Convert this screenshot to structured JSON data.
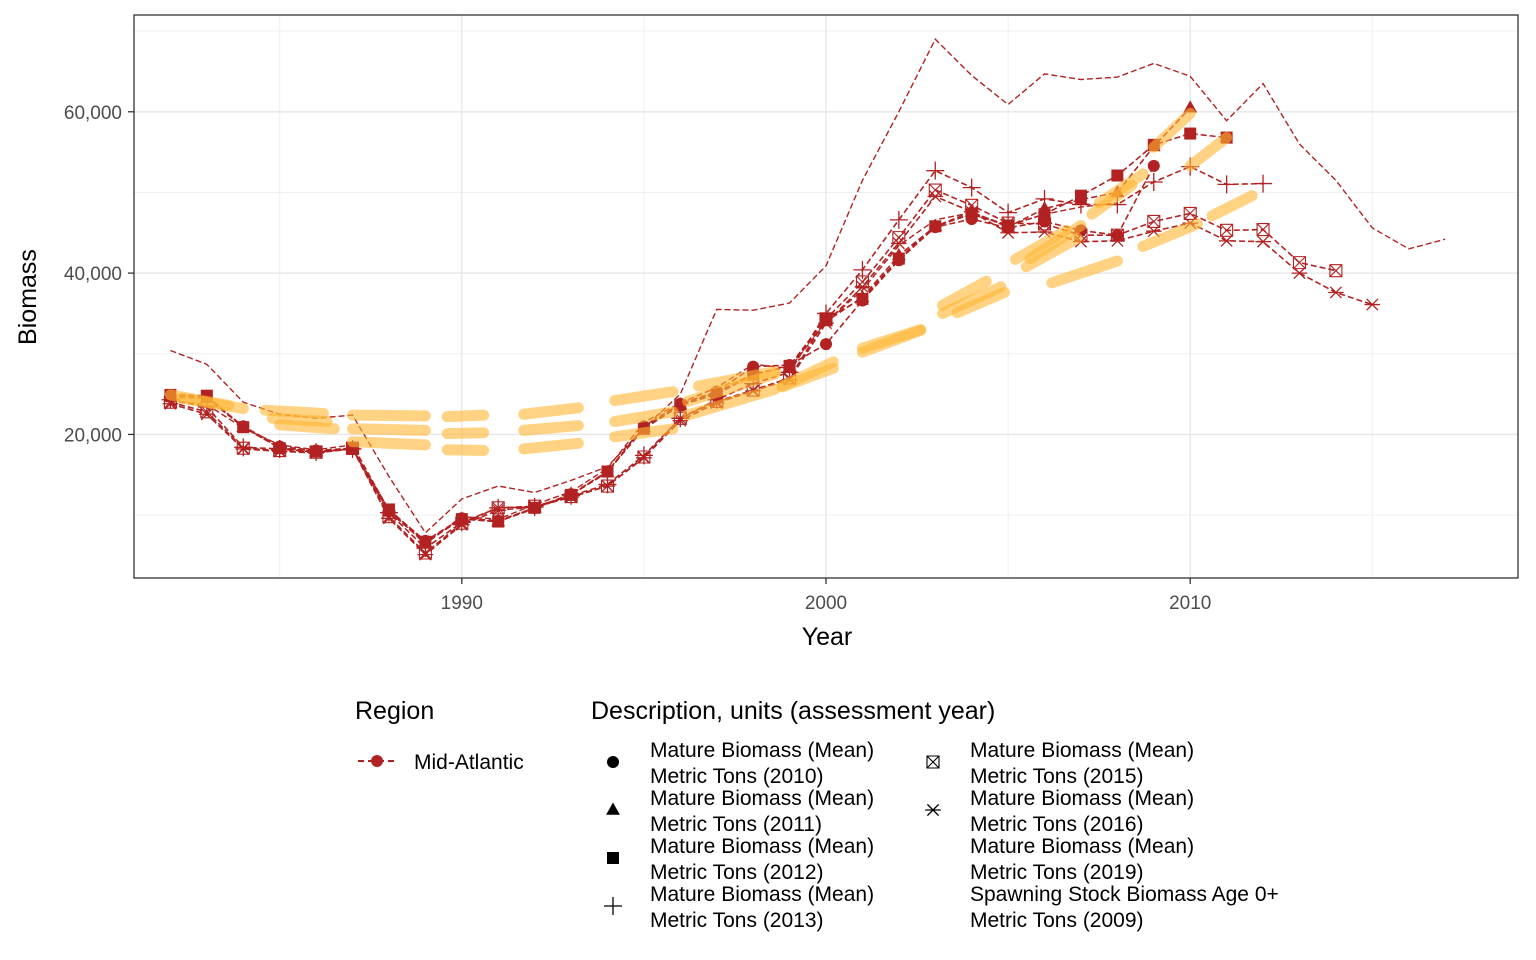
{
  "chart_data": {
    "type": "line",
    "xlabel": "Year",
    "ylabel": "Biomass",
    "xlim": [
      1981,
      2019
    ],
    "ylim": [
      2200,
      72000
    ],
    "x_ticks": [
      1990,
      2000,
      2010
    ],
    "x_tick_labels": [
      "1990",
      "2000",
      "2010"
    ],
    "y_ticks": [
      20000,
      40000,
      60000
    ],
    "y_tick_labels": [
      "20,000",
      "40,000",
      "60,000"
    ],
    "grid": true,
    "legend_position": "bottom",
    "line_color": "#B22222",
    "trend_color": "#FFB732",
    "region_legend": {
      "title": "Region",
      "entries": [
        {
          "label": "Mid-Atlantic",
          "color": "#B22222"
        }
      ]
    },
    "description_legend": {
      "title": "Description, units (assessment year)",
      "entries": [
        {
          "line1": "Mature Biomass (Mean)",
          "line2": "Metric Tons (2010)",
          "shape": "circle"
        },
        {
          "line1": "Mature Biomass (Mean)",
          "line2": "Metric Tons (2011)",
          "shape": "triangle"
        },
        {
          "line1": "Mature Biomass (Mean)",
          "line2": "Metric Tons (2012)",
          "shape": "square"
        },
        {
          "line1": "Mature Biomass (Mean)",
          "line2": "Metric Tons (2013)",
          "shape": "plus"
        },
        {
          "line1": "Mature Biomass (Mean)",
          "line2": "Metric Tons (2015)",
          "shape": "boxtimes"
        },
        {
          "line1": "Mature Biomass (Mean)",
          "line2": "Metric Tons (2016)",
          "shape": "asterisk"
        },
        {
          "line1": "Mature Biomass (Mean)",
          "line2": "Metric Tons (2019)",
          "shape": "none"
        },
        {
          "line1": "Spawning Stock Biomass Age 0+",
          "line2": "Metric Tons (2009)",
          "shape": "none"
        }
      ]
    },
    "series": [
      {
        "name": "Mature Biomass (Mean) Metric Tons (2010)",
        "shape": "circle",
        "x": [
          1982,
          1983,
          1984,
          1985,
          1986,
          1987,
          1988,
          1989,
          1990,
          1991,
          1992,
          1993,
          1994,
          1995,
          1996,
          1997,
          1998,
          1999,
          2000,
          2001,
          2002,
          2003,
          2004,
          2005,
          2006,
          2007,
          2008,
          2009
        ],
        "y": [
          24800,
          24600,
          21000,
          18500,
          18000,
          18300,
          10600,
          6800,
          9600,
          9300,
          10900,
          12600,
          15400,
          21000,
          23800,
          25300,
          28400,
          28600,
          31200,
          36600,
          41600,
          45700,
          46700,
          45600,
          46400,
          45300,
          44700,
          53300
        ]
      },
      {
        "name": "Mature Biomass (Mean) Metric Tons (2011)",
        "shape": "triangle",
        "x": [
          1982,
          1983,
          1984,
          1985,
          1986,
          1987,
          1988,
          1989,
          1990,
          1991,
          1992,
          1993,
          1994,
          1995,
          1996,
          1997,
          1998,
          1999,
          2000,
          2001,
          2002,
          2003,
          2004,
          2005,
          2006,
          2007,
          2008,
          2009,
          2010
        ],
        "y": [
          24600,
          24500,
          20900,
          18400,
          17900,
          18200,
          10400,
          6600,
          9500,
          9200,
          10800,
          12500,
          15300,
          20900,
          23700,
          25200,
          27500,
          28400,
          34000,
          37000,
          42200,
          45800,
          47600,
          45700,
          48000,
          49100,
          50000,
          55700,
          60500
        ]
      },
      {
        "name": "Mature Biomass (Mean) Metric Tons (2012)",
        "shape": "square",
        "x": [
          1982,
          1983,
          1984,
          1985,
          1986,
          1987,
          1988,
          1989,
          1990,
          1991,
          1992,
          1993,
          1994,
          1995,
          1996,
          1997,
          1998,
          1999,
          2000,
          2001,
          2002,
          2003,
          2004,
          2005,
          2006,
          2007,
          2008,
          2009,
          2010,
          2011
        ],
        "y": [
          24900,
          24800,
          20900,
          18300,
          17900,
          18200,
          10700,
          6700,
          9500,
          9200,
          10900,
          12500,
          15400,
          20700,
          23600,
          25000,
          27400,
          28500,
          34400,
          36800,
          41800,
          45800,
          47300,
          45900,
          47300,
          49600,
          52100,
          55900,
          57300,
          56800
        ]
      },
      {
        "name": "Mature Biomass (Mean) Metric Tons (2013)",
        "shape": "plus",
        "x": [
          1982,
          1983,
          1984,
          1985,
          1986,
          1987,
          1988,
          1989,
          1990,
          1991,
          1992,
          1993,
          1994,
          1995,
          1996,
          1997,
          1998,
          1999,
          2000,
          2001,
          2002,
          2003,
          2004,
          2005,
          2006,
          2007,
          2008,
          2009,
          2010,
          2011,
          2012
        ],
        "y": [
          24300,
          23400,
          18400,
          18200,
          17800,
          18200,
          10300,
          5900,
          9100,
          10900,
          11000,
          12400,
          13800,
          17400,
          22000,
          24300,
          26300,
          27700,
          35000,
          40400,
          46600,
          52700,
          50600,
          47500,
          49200,
          48500,
          48500,
          51300,
          53200,
          51000,
          51100
        ]
      },
      {
        "name": "Mature Biomass (Mean) Metric Tons (2015)",
        "shape": "boxtimes",
        "x": [
          1982,
          1983,
          1984,
          1985,
          1986,
          1987,
          1988,
          1989,
          1990,
          1991,
          1992,
          1993,
          1994,
          1995,
          1996,
          1997,
          1998,
          1999,
          2000,
          2001,
          2002,
          2003,
          2004,
          2005,
          2006,
          2007,
          2008,
          2009,
          2010,
          2011,
          2012,
          2013,
          2014
        ],
        "y": [
          24000,
          22800,
          18300,
          18000,
          17800,
          18300,
          9800,
          5300,
          9000,
          10900,
          11100,
          12300,
          13600,
          17200,
          22000,
          24100,
          25500,
          27000,
          34300,
          38900,
          44400,
          50300,
          48400,
          46200,
          46100,
          44700,
          44700,
          46400,
          47400,
          45300,
          45400,
          41300,
          40300
        ]
      },
      {
        "name": "Mature Biomass (Mean) Metric Tons (2016)",
        "shape": "asterisk",
        "x": [
          1982,
          1983,
          1984,
          1985,
          1986,
          1987,
          1988,
          1989,
          1990,
          1991,
          1992,
          1993,
          1994,
          1995,
          1996,
          1997,
          1998,
          1999,
          2000,
          2001,
          2002,
          2003,
          2004,
          2005,
          2006,
          2007,
          2008,
          2009,
          2010,
          2011,
          2012,
          2013,
          2014,
          2015
        ],
        "y": [
          23800,
          22500,
          18200,
          17900,
          17700,
          18200,
          9600,
          5100,
          8800,
          10600,
          11000,
          12200,
          13600,
          17100,
          21700,
          23900,
          25400,
          26800,
          33800,
          38300,
          43700,
          49500,
          47600,
          45000,
          45100,
          43900,
          44000,
          45200,
          46200,
          44000,
          43900,
          40000,
          37600,
          36100
        ]
      },
      {
        "name": "Mature Biomass (Mean) Metric Tons (2019)",
        "shape": "none",
        "x": [
          1982,
          1983,
          1984,
          1985,
          1986,
          1987,
          1988,
          1989,
          1990,
          1991,
          1992,
          1993,
          1994,
          1995,
          1996,
          1997,
          1998,
          1999,
          2000,
          2001,
          2002,
          2003,
          2004,
          2005,
          2006,
          2007,
          2008,
          2009,
          2010,
          2011,
          2012,
          2013,
          2014,
          2015,
          2016,
          2017
        ],
        "y": [
          30400,
          28700,
          24000,
          22500,
          22000,
          22400,
          14800,
          7800,
          12000,
          13600,
          12800,
          14300,
          16000,
          20800,
          25000,
          35500,
          35400,
          36300,
          40900,
          51500,
          60000,
          69000,
          64500,
          60900,
          64700,
          64000,
          64300,
          66000,
          64400,
          58900,
          63500,
          56000,
          51500,
          45600,
          43000,
          44200
        ]
      },
      {
        "name": "Spawning Stock Biomass Age 0+ Metric Tons (2009)",
        "shape": "none",
        "x": [
          1982,
          1983,
          1984,
          1985,
          1986,
          1987,
          1988,
          1989,
          1990,
          1991,
          1992,
          1993,
          1994,
          1995,
          1996,
          1997,
          1998,
          1999,
          2000,
          2001,
          2002,
          2003,
          2004,
          2005,
          2006,
          2007,
          2008
        ],
        "y": [
          24200,
          23700,
          20800,
          18700,
          18100,
          18700,
          10600,
          6400,
          9800,
          9500,
          11300,
          12900,
          15800,
          21500,
          23900,
          25800,
          28700,
          28200,
          33900,
          37900,
          43400,
          46600,
          47500,
          45900,
          47300,
          48200,
          48700
        ]
      }
    ],
    "trend_segments": [
      {
        "x": [
          1982.0,
          1983.6
        ],
        "y": [
          24900,
          23600
        ]
      },
      {
        "x": [
          1982.3,
          1984.0
        ],
        "y": [
          24500,
          23200
        ]
      },
      {
        "x": [
          1984.6,
          1986.2
        ],
        "y": [
          23000,
          22600
        ]
      },
      {
        "x": [
          1984.8,
          1986.3
        ],
        "y": [
          22000,
          21600
        ]
      },
      {
        "x": [
          1985.0,
          1986.5
        ],
        "y": [
          21200,
          20700
        ]
      },
      {
        "x": [
          1987.0,
          1989.0
        ],
        "y": [
          22400,
          22300
        ]
      },
      {
        "x": [
          1987.0,
          1989.0
        ],
        "y": [
          20700,
          20500
        ]
      },
      {
        "x": [
          1987.0,
          1989.0
        ],
        "y": [
          19100,
          18700
        ]
      },
      {
        "x": [
          1989.6,
          1990.6
        ],
        "y": [
          22200,
          22400
        ]
      },
      {
        "x": [
          1989.6,
          1990.6
        ],
        "y": [
          20100,
          20200
        ]
      },
      {
        "x": [
          1989.6,
          1990.6
        ],
        "y": [
          18100,
          18000
        ]
      },
      {
        "x": [
          1991.7,
          1993.2
        ],
        "y": [
          22500,
          23300
        ]
      },
      {
        "x": [
          1991.7,
          1993.2
        ],
        "y": [
          20500,
          21100
        ]
      },
      {
        "x": [
          1991.7,
          1993.2
        ],
        "y": [
          18200,
          18900
        ]
      },
      {
        "x": [
          1994.2,
          1995.8
        ],
        "y": [
          24200,
          25300
        ]
      },
      {
        "x": [
          1994.2,
          1995.8
        ],
        "y": [
          21600,
          22800
        ]
      },
      {
        "x": [
          1994.2,
          1995.8
        ],
        "y": [
          19700,
          20700
        ]
      },
      {
        "x": [
          1996.2,
          1998.6
        ],
        "y": [
          24100,
          27500
        ]
      },
      {
        "x": [
          1996.2,
          1998.6
        ],
        "y": [
          22400,
          25600
        ]
      },
      {
        "x": [
          1996.5,
          1998.6
        ],
        "y": [
          26000,
          27800
        ]
      },
      {
        "x": [
          1998.8,
          2000.2
        ],
        "y": [
          26000,
          29000
        ]
      },
      {
        "x": [
          1998.8,
          2000.2
        ],
        "y": [
          25900,
          28200
        ]
      },
      {
        "x": [
          2001.0,
          2002.6
        ],
        "y": [
          30200,
          32900
        ]
      },
      {
        "x": [
          2001.0,
          2002.6
        ],
        "y": [
          30700,
          33000
        ]
      },
      {
        "x": [
          2003.2,
          2004.4
        ],
        "y": [
          36000,
          39000
        ]
      },
      {
        "x": [
          2003.2,
          2004.8
        ],
        "y": [
          35000,
          38300
        ]
      },
      {
        "x": [
          2003.6,
          2004.9
        ],
        "y": [
          35100,
          37600
        ]
      },
      {
        "x": [
          2005.2,
          2006.6
        ],
        "y": [
          41700,
          45300
        ]
      },
      {
        "x": [
          2005.5,
          2006.9
        ],
        "y": [
          40800,
          44300
        ]
      },
      {
        "x": [
          2005.6,
          2007.0
        ],
        "y": [
          41800,
          45900
        ]
      },
      {
        "x": [
          2006.2,
          2008.0
        ],
        "y": [
          38800,
          41500
        ]
      },
      {
        "x": [
          2007.3,
          2008.4
        ],
        "y": [
          47300,
          50900
        ]
      },
      {
        "x": [
          2007.5,
          2008.7
        ],
        "y": [
          48700,
          52300
        ]
      },
      {
        "x": [
          2008.7,
          2010.2
        ],
        "y": [
          43300,
          46100
        ]
      },
      {
        "x": [
          2009.0,
          2010.0
        ],
        "y": [
          55600,
          59800
        ]
      },
      {
        "x": [
          2010.0,
          2011.0
        ],
        "y": [
          53300,
          56800
        ]
      },
      {
        "x": [
          2010.6,
          2011.7
        ],
        "y": [
          47100,
          49600
        ]
      }
    ]
  }
}
